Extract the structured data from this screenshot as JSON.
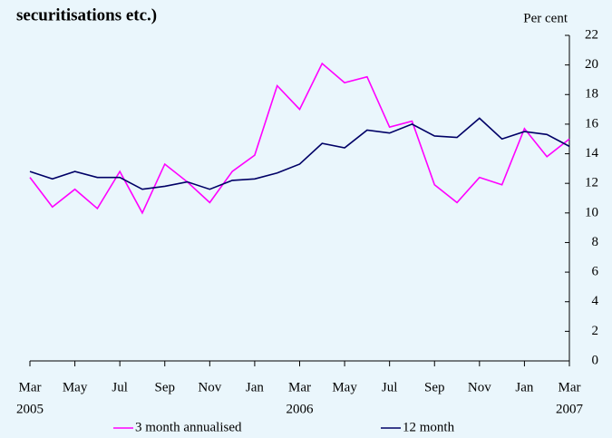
{
  "chart_data": {
    "type": "line",
    "title": "securitisations etc.)",
    "y_axis_label": "Per cent",
    "categories": [
      "Mar",
      null,
      "May",
      null,
      "Jul",
      null,
      "Sep",
      null,
      "Nov",
      null,
      "Jan",
      null,
      "Mar",
      null,
      "May",
      null,
      "Jul",
      null,
      "Sep",
      null,
      "Nov",
      null,
      "Jan",
      null,
      "Mar"
    ],
    "category_years": [
      "2005",
      null,
      null,
      null,
      null,
      null,
      null,
      null,
      null,
      null,
      null,
      null,
      "2006",
      null,
      null,
      null,
      null,
      null,
      null,
      null,
      null,
      null,
      null,
      null,
      "2007"
    ],
    "series": [
      {
        "name": "3 month annualised",
        "color": "#ff00ff",
        "values": [
          12.4,
          10.4,
          11.6,
          10.3,
          12.8,
          10.0,
          13.3,
          12.1,
          10.7,
          12.8,
          13.9,
          18.6,
          17.0,
          20.1,
          18.8,
          19.2,
          15.8,
          16.2,
          11.9,
          10.7,
          12.4,
          11.9,
          15.7,
          13.8,
          15.0
        ]
      },
      {
        "name": "12 month",
        "color": "#000066",
        "values": [
          12.8,
          12.3,
          12.8,
          12.4,
          12.4,
          11.6,
          11.8,
          12.1,
          11.6,
          12.2,
          12.3,
          12.7,
          13.3,
          14.7,
          14.4,
          15.6,
          15.4,
          16.0,
          15.2,
          15.1,
          16.4,
          15.0,
          15.5,
          15.3,
          14.5
        ]
      }
    ],
    "ylim": [
      0,
      22
    ],
    "yticks": [
      0,
      2,
      4,
      6,
      8,
      10,
      12,
      14,
      16,
      18,
      20,
      22
    ],
    "y_axis_side": "right",
    "legend": "bottom"
  }
}
